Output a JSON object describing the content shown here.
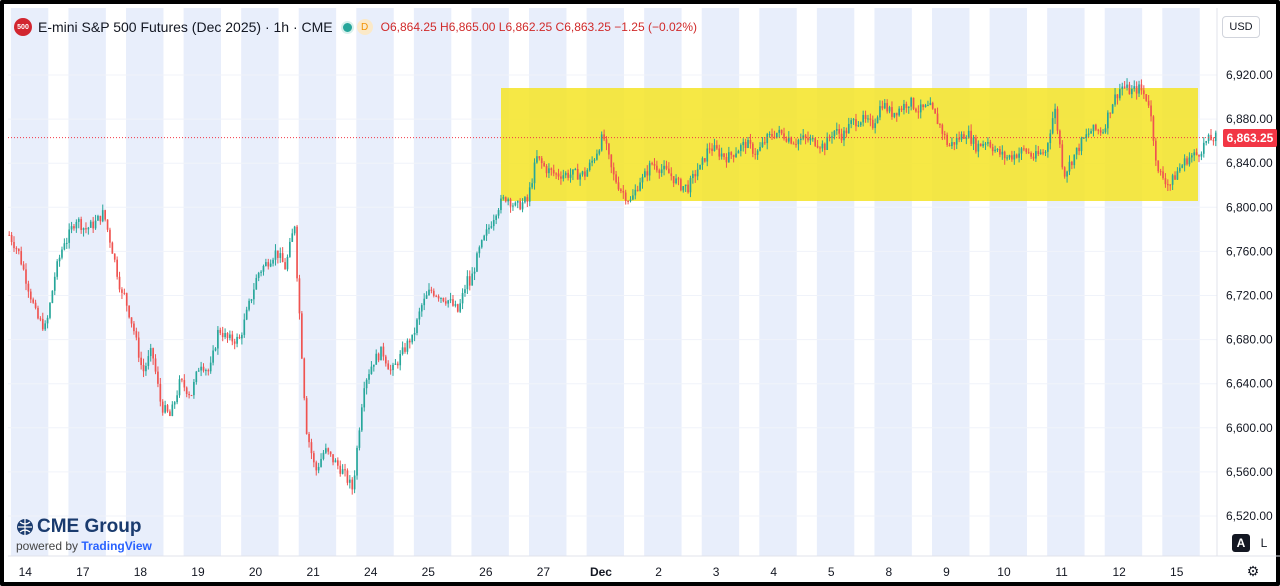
{
  "header": {
    "symbol_badge": "500",
    "title": "E-mini S&P 500 Futures (Dec 2025) · 1h · CME",
    "d_badge": "D",
    "ohlc": {
      "o_label": "O",
      "o": "6,864.25",
      "h_label": "H",
      "h": "6,865.00",
      "l_label": "L",
      "l": "6,862.25",
      "c_label": "C",
      "c": "6,863.25",
      "change": "−1.25 (−0.02%)"
    }
  },
  "currency_button": "USD",
  "price_axis": {
    "ticks": [
      "6,920.00",
      "6,880.00",
      "6,840.00",
      "6,800.00",
      "6,760.00",
      "6,720.00",
      "6,680.00",
      "6,640.00",
      "6,600.00",
      "6,560.00",
      "6,520.00"
    ],
    "last_price_label": "6,863.25"
  },
  "time_axis": {
    "labels": [
      "14",
      "17",
      "18",
      "19",
      "20",
      "21",
      "24",
      "25",
      "26",
      "27",
      "Dec",
      "2",
      "3",
      "4",
      "5",
      "8",
      "9",
      "10",
      "11",
      "12",
      "15"
    ]
  },
  "logo": {
    "main": "CME Group",
    "sub_prefix": "powered by",
    "sub_brand": "TradingView"
  },
  "controls": {
    "auto": "A",
    "log": "L",
    "settings_icon": "gear-icon"
  },
  "colors": {
    "up": "#26a69a",
    "down": "#ef5350",
    "session": "#e8eefb",
    "range_box": "#f5e425",
    "last_price": "#f23645"
  },
  "chart_data": {
    "type": "candlestick",
    "interval": "1h",
    "ylim": [
      6500,
      6940
    ],
    "last_price": 6863.25,
    "days": [
      {
        "label": "14",
        "open": 6775,
        "high": 6780,
        "low": 6670,
        "close": 6770,
        "trend": [
          6775,
          6760,
          6730,
          6700,
          6690,
          6740,
          6770
        ]
      },
      {
        "label": "17",
        "open": 6770,
        "high": 6800,
        "low": 6705,
        "close": 6720,
        "trend": [
          6770,
          6790,
          6780,
          6785,
          6795,
          6760,
          6720
        ]
      },
      {
        "label": "18",
        "open": 6720,
        "high": 6710,
        "low": 6600,
        "close": 6640,
        "trend": [
          6720,
          6690,
          6650,
          6670,
          6620,
          6610,
          6640
        ]
      },
      {
        "label": "19",
        "open": 6640,
        "high": 6700,
        "low": 6620,
        "close": 6680,
        "trend": [
          6640,
          6630,
          6660,
          6650,
          6690,
          6680,
          6680
        ]
      },
      {
        "label": "20",
        "open": 6680,
        "high": 6792,
        "low": 6640,
        "close": 6740,
        "trend": [
          6680,
          6710,
          6740,
          6750,
          6760,
          6745,
          6785
        ]
      },
      {
        "label": "21",
        "open": 6740,
        "high": 6760,
        "low": 6530,
        "close": 6560,
        "trend": [
          6740,
          6600,
          6560,
          6580,
          6570,
          6560,
          6545
        ]
      },
      {
        "label": "24",
        "open": 6560,
        "high": 6700,
        "low": 6545,
        "close": 6680,
        "trend": [
          6560,
          6640,
          6660,
          6670,
          6650,
          6665,
          6680
        ]
      },
      {
        "label": "25",
        "open": 6680,
        "high": 6740,
        "low": 6640,
        "close": 6730,
        "trend": [
          6680,
          6710,
          6725,
          6720,
          6715,
          6705,
          6735
        ]
      },
      {
        "label": "26",
        "open": 6730,
        "high": 6820,
        "low": 6700,
        "close": 6805,
        "trend": [
          6730,
          6760,
          6780,
          6800,
          6810,
          6800,
          6805
        ]
      },
      {
        "label": "27",
        "open": 6805,
        "high": 6850,
        "low": 6820,
        "close": 6830,
        "trend": [
          6805,
          6845,
          6835,
          6830,
          6830,
          6830,
          6830
        ]
      },
      {
        "label": "Dec",
        "open": 6830,
        "high": 6865,
        "low": 6800,
        "close": 6825,
        "trend": [
          6830,
          6845,
          6865,
          6830,
          6815,
          6805,
          6825
        ]
      },
      {
        "label": "2",
        "open": 6825,
        "high": 6850,
        "low": 6810,
        "close": 6830,
        "trend": [
          6825,
          6840,
          6835,
          6830,
          6820,
          6818,
          6835
        ]
      },
      {
        "label": "3",
        "open": 6835,
        "high": 6860,
        "low": 6815,
        "close": 6850,
        "trend": [
          6835,
          6855,
          6850,
          6845,
          6852,
          6858,
          6850
        ]
      },
      {
        "label": "4",
        "open": 6850,
        "high": 6870,
        "low": 6815,
        "close": 6860,
        "trend": [
          6850,
          6862,
          6868,
          6865,
          6860,
          6862,
          6860
        ]
      },
      {
        "label": "5",
        "open": 6860,
        "high": 6880,
        "low": 6840,
        "close": 6875,
        "trend": [
          6860,
          6855,
          6870,
          6865,
          6877,
          6880,
          6875
        ]
      },
      {
        "label": "8",
        "open": 6875,
        "high": 6905,
        "low": 6860,
        "close": 6890,
        "trend": [
          6875,
          6895,
          6885,
          6890,
          6896,
          6888,
          6890
        ]
      },
      {
        "label": "9",
        "open": 6890,
        "high": 6885,
        "low": 6835,
        "close": 6860,
        "trend": [
          6890,
          6875,
          6855,
          6862,
          6868,
          6855,
          6860
        ]
      },
      {
        "label": "10",
        "open": 6860,
        "high": 6870,
        "low": 6830,
        "close": 6850,
        "trend": [
          6860,
          6850,
          6845,
          6848,
          6852,
          6845,
          6850
        ]
      },
      {
        "label": "11",
        "open": 6850,
        "high": 6910,
        "low": 6815,
        "close": 6870,
        "trend": [
          6850,
          6890,
          6830,
          6845,
          6860,
          6870,
          6870
        ]
      },
      {
        "label": "12",
        "open": 6870,
        "high": 6930,
        "low": 6805,
        "close": 6830,
        "trend": [
          6870,
          6895,
          6910,
          6905,
          6908,
          6895,
          6830
        ]
      },
      {
        "label": "15",
        "open": 6830,
        "high": 6868,
        "low": 6810,
        "close": 6863.25,
        "trend": [
          6830,
          6820,
          6835,
          6845,
          6848,
          6860,
          6863.25
        ]
      }
    ]
  }
}
